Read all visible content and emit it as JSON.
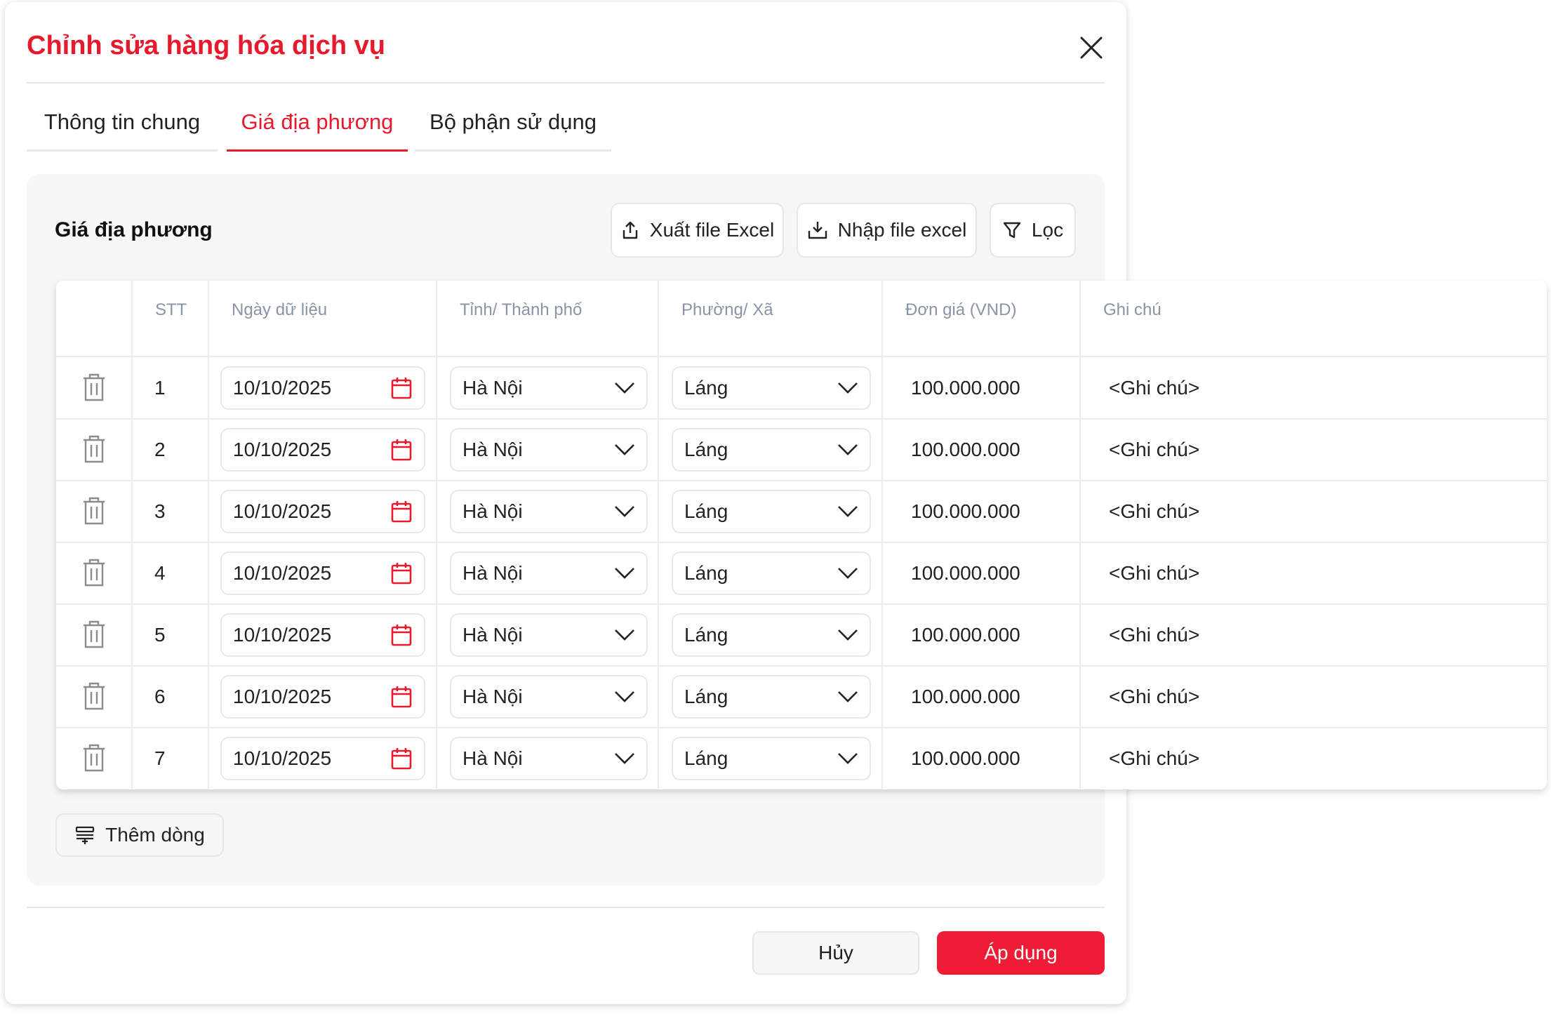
{
  "dialog": {
    "title": "Chỉnh sửa hàng hóa dịch vụ"
  },
  "tabs": [
    {
      "label": "Thông tin chung",
      "active": false
    },
    {
      "label": "Giá địa phương",
      "active": true
    },
    {
      "label": "Bộ phận sử dụng",
      "active": false
    }
  ],
  "section": {
    "title": "Giá địa phương",
    "export_label": "Xuất file Excel",
    "import_label": "Nhập file excel",
    "filter_label": "Lọc",
    "add_row_label": "Thêm dòng"
  },
  "table": {
    "headers": [
      "",
      "STT",
      "Ngày dữ liệu",
      "Tỉnh/ Thành phố",
      "Phường/ Xã",
      "Đơn giá (VND)",
      "Ghi chú"
    ],
    "rows": [
      {
        "stt": "1",
        "date": "10/10/2025",
        "province": "Hà Nội",
        "ward": "Láng",
        "price": "100.000.000",
        "note": "<Ghi chú>"
      },
      {
        "stt": "2",
        "date": "10/10/2025",
        "province": "Hà Nội",
        "ward": "Láng",
        "price": "100.000.000",
        "note": "<Ghi chú>"
      },
      {
        "stt": "3",
        "date": "10/10/2025",
        "province": "Hà Nội",
        "ward": "Láng",
        "price": "100.000.000",
        "note": "<Ghi chú>"
      },
      {
        "stt": "4",
        "date": "10/10/2025",
        "province": "Hà Nội",
        "ward": "Láng",
        "price": "100.000.000",
        "note": "<Ghi chú>"
      },
      {
        "stt": "5",
        "date": "10/10/2025",
        "province": "Hà Nội",
        "ward": "Láng",
        "price": "100.000.000",
        "note": "<Ghi chú>"
      },
      {
        "stt": "6",
        "date": "10/10/2025",
        "province": "Hà Nội",
        "ward": "Láng",
        "price": "100.000.000",
        "note": "<Ghi chú>"
      },
      {
        "stt": "7",
        "date": "10/10/2025",
        "province": "Hà Nội",
        "ward": "Láng",
        "price": "100.000.000",
        "note": "<Ghi chú>"
      }
    ]
  },
  "footer": {
    "cancel_label": "Hủy",
    "apply_label": "Áp dụng"
  },
  "colors": {
    "accent": "#e8192c",
    "apply_bg": "#ee1c35",
    "panel_bg": "#f7f7f7",
    "header_text": "#8a94a6"
  }
}
